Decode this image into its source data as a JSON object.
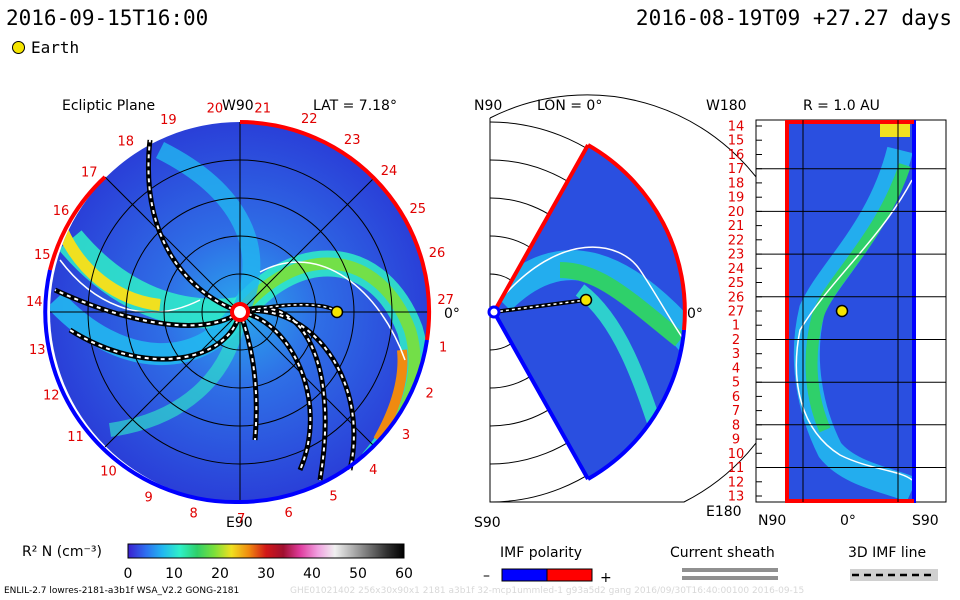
{
  "header": {
    "left_time": "2016-09-15T16:00",
    "right_info": "2016-08-19T09 +27.27 days"
  },
  "legend": {
    "earth_label": "Earth"
  },
  "panels": {
    "ecliptic": {
      "title": "Ecliptic Plane",
      "lat_label": "LAT = 7.18°",
      "top_label": "W90",
      "bottom_label": "E90",
      "right_label": "0°",
      "rotation_labels": [
        "20",
        "21",
        "22",
        "23",
        "24",
        "25",
        "26",
        "27",
        "1",
        "2",
        "3",
        "4",
        "5",
        "6",
        "7",
        "8",
        "9",
        "10",
        "11",
        "12",
        "13",
        "14",
        "15",
        "16",
        "17",
        "18",
        "19"
      ]
    },
    "meridional": {
      "top_label": "N90",
      "lon_label": "LON = 0°",
      "bottom_label": "S90",
      "right_label": "0°"
    },
    "map": {
      "title": "R = 1.0 AU",
      "top_left_label": "W180",
      "bottom_left_label": "E180",
      "x_labels": [
        "N90",
        "0°",
        "S90"
      ],
      "y_labels": [
        "14",
        "15",
        "16",
        "17",
        "18",
        "19",
        "20",
        "21",
        "22",
        "23",
        "24",
        "25",
        "26",
        "27",
        "1",
        "2",
        "3",
        "4",
        "5",
        "6",
        "7",
        "8",
        "9",
        "10",
        "11",
        "12",
        "13"
      ]
    }
  },
  "colorbar": {
    "label": "R² N (cm⁻³)",
    "ticks": [
      "0",
      "10",
      "20",
      "30",
      "40",
      "50",
      "60"
    ],
    "colors": [
      "#3a1fcf",
      "#2e6df0",
      "#22b7f0",
      "#2ff0c8",
      "#2fd06a",
      "#7be03a",
      "#f0e020",
      "#f08a10",
      "#d21818",
      "#a01030",
      "#e03ea0",
      "#f0a0e0",
      "#f0f0f0",
      "#b0b0b0",
      "#707070",
      "#303030",
      "#000000"
    ]
  },
  "imf_polarity": {
    "title": "IMF polarity",
    "minus": "–",
    "plus": "+",
    "neg_color": "#0000ff",
    "pos_color": "#ff0000"
  },
  "current_sheath": {
    "title": "Current sheath"
  },
  "imf_line": {
    "title": "3D IMF line"
  },
  "footer": {
    "model_info": "ENLIL-2.7 lowres-2181-a3b1f WSA_V2.2 GONG-2181",
    "faint_info": "GHE01021402 256x30x90x1 2181 a3b1f 32-mcp1ummled-1 g93a5d2 gang 2016/09/30T16:40:00100   2016-09-15"
  },
  "chart_data": [
    {
      "type": "heatmap",
      "title": "Ecliptic Plane",
      "subtitle": "LAT = 7.18°",
      "value_label": "R² N (cm⁻³)",
      "value_range": [
        0,
        60
      ],
      "markers": [
        {
          "label": "Earth",
          "r_au": 1.0,
          "longitude_deg": 0
        }
      ]
    },
    {
      "type": "heatmap",
      "title": "LON = 0°",
      "value_range": [
        0,
        60
      ]
    },
    {
      "type": "heatmap",
      "title": "R = 1.0 AU",
      "x_range": [
        "N90",
        "S90"
      ],
      "y_range": [
        "W180",
        "E180"
      ],
      "value_range": [
        0,
        60
      ]
    }
  ]
}
